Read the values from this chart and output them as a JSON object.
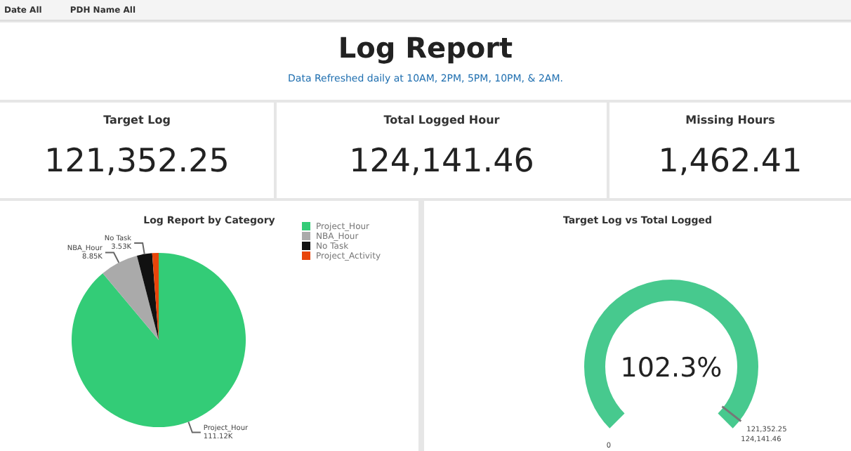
{
  "chart_data": [
    {
      "type": "other",
      "title": "Log Report",
      "subtitle": "Data Refreshed daily at 10AM, 2PM, 5PM, 10PM, & 2AM.",
      "annotations": [
        "Date All",
        "PDH Name All"
      ]
    },
    {
      "type": "other",
      "title": "Target Log",
      "annotations": [
        "121,352.25"
      ]
    },
    {
      "type": "other",
      "title": "Total Logged Hour",
      "annotations": [
        "124,141.46"
      ]
    },
    {
      "type": "other",
      "title": "Missing Hours",
      "annotations": [
        "1,462.41"
      ]
    },
    {
      "type": "pie",
      "title": "Log Report by Category",
      "categories": [
        "Project_Hour",
        "NBA_Hour",
        "No Task",
        "Project_Activity"
      ],
      "values": [
        111.12,
        8.85,
        3.53,
        1.5
      ],
      "colors": [
        "#33cc77",
        "#aaaaaa",
        "#111111",
        "#e8450a"
      ],
      "value_labels": [
        "111.12K",
        "8.85K",
        "3.53K",
        null
      ],
      "legend": "top right"
    },
    {
      "type": "other",
      "title": "Target Log vs Total Logged",
      "annotations": [
        "102.3%",
        "0",
        "121,352.25",
        "124,141.46"
      ]
    }
  ]
}
